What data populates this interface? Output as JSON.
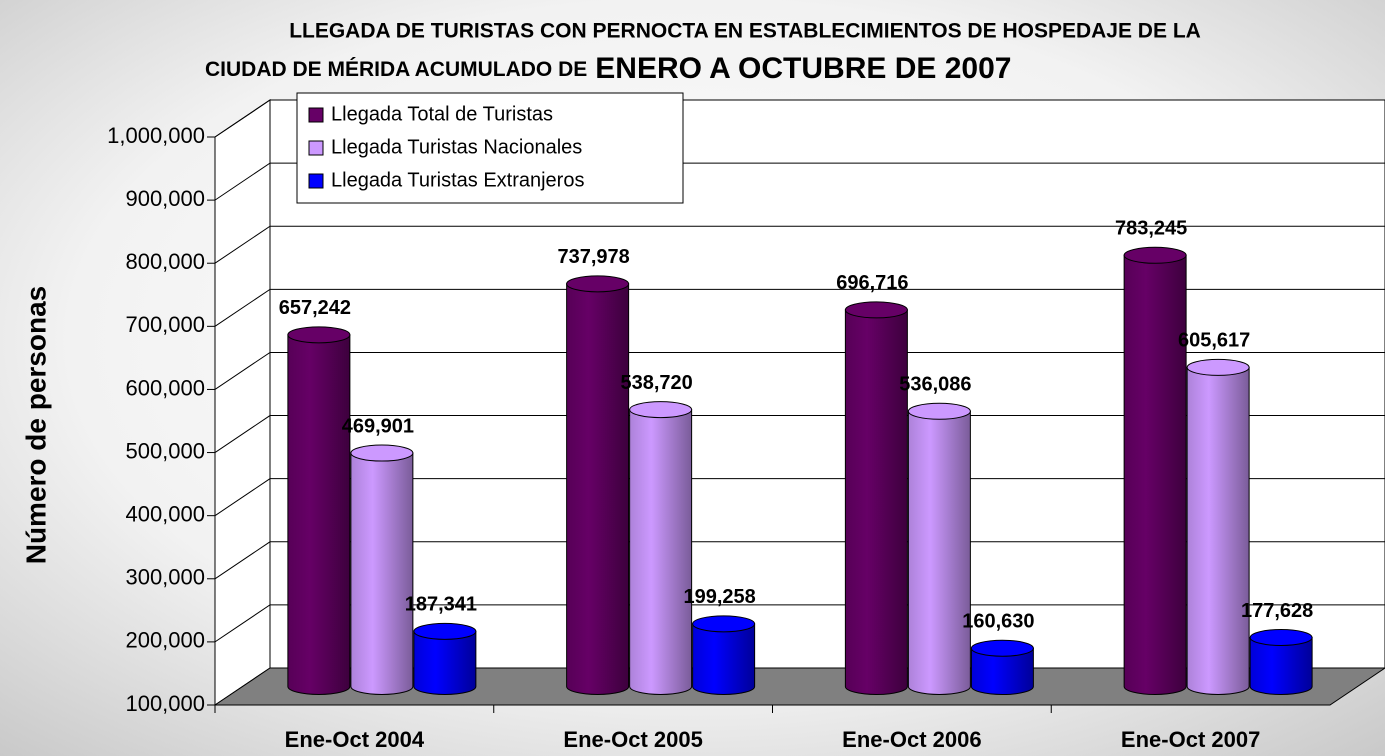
{
  "chart_data": {
    "type": "bar3d",
    "title": [
      "LLEGADA DE TURISTAS CON PERNOCTA EN ESTABLECIMIENTOS DE HOSPEDAJE DE LA",
      "CIUDAD DE MÉRIDA ACUMULADO DE",
      "ENERO A OCTUBRE DE 2007"
    ],
    "y_label": "Número de personas",
    "categories": [
      "Ene-Oct 2004",
      "Ene-Oct 2005",
      "Ene-Oct 2006",
      "Ene-Oct 2007"
    ],
    "series": [
      {
        "name": "Llegada Total de Turistas",
        "color": "#660066",
        "values": [
          657242,
          737978,
          696716,
          783245
        ],
        "value_labels": [
          "657,242",
          "737,978",
          "696,716",
          "783,245"
        ]
      },
      {
        "name": "Llegada Turistas Nacionales",
        "color": "#cc99ff",
        "values": [
          469901,
          538720,
          536086,
          605617
        ],
        "value_labels": [
          "469,901",
          "538,720",
          "536,086",
          "605,617"
        ]
      },
      {
        "name": "Llegada Turistas Extranjeros",
        "color": "#0000ff",
        "values": [
          187341,
          199258,
          160630,
          177628
        ],
        "value_labels": [
          "187,341",
          "199,258",
          "160,630",
          "177,628"
        ]
      }
    ],
    "ylim": [
      100000,
      1000000
    ],
    "yticks": [
      {
        "value": 100000,
        "label": "100,000"
      },
      {
        "value": 200000,
        "label": "200,000"
      },
      {
        "value": 300000,
        "label": "300,000"
      },
      {
        "value": 400000,
        "label": "400,000"
      },
      {
        "value": 500000,
        "label": "500,000"
      },
      {
        "value": 600000,
        "label": "600,000"
      },
      {
        "value": 700000,
        "label": "700,000"
      },
      {
        "value": 800000,
        "label": "800,000"
      },
      {
        "value": 900000,
        "label": "900,000"
      },
      {
        "value": 1000000,
        "label": "1,000,000"
      }
    ],
    "grid": true,
    "legend": "top-left"
  }
}
